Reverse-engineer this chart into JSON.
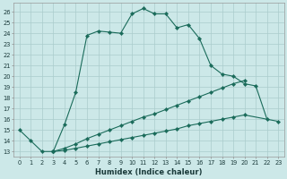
{
  "xlabel": "Humidex (Indice chaleur)",
  "ylabel": "",
  "bg_color": "#cce8e8",
  "grid_color": "#aacccc",
  "line_color": "#1a6b5a",
  "ylim": [
    12.5,
    26.8
  ],
  "xlim": [
    -0.5,
    23.5
  ],
  "line_main": [
    null,
    null,
    null,
    13.0,
    15.5,
    18.5,
    23.8,
    24.2,
    24.1,
    24.0,
    25.8,
    26.3,
    25.8,
    25.8,
    24.5,
    24.8,
    23.5,
    21.0,
    20.2,
    20.0,
    19.3,
    19.1,
    16.0,
    null
  ],
  "line_short": [
    15.0,
    14.0,
    13.0,
    13.0,
    null,
    null,
    null,
    null,
    null,
    null,
    null,
    null,
    null,
    null,
    null,
    null,
    null,
    null,
    null,
    null,
    null,
    null,
    null,
    null
  ],
  "line_upper": [
    null,
    null,
    null,
    13.0,
    13.3,
    13.7,
    14.2,
    14.6,
    15.0,
    15.4,
    15.8,
    16.2,
    16.5,
    16.9,
    17.3,
    17.7,
    18.1,
    18.5,
    18.9,
    19.3,
    19.6,
    null,
    null,
    null
  ],
  "line_lower": [
    null,
    null,
    null,
    13.0,
    13.1,
    13.3,
    13.5,
    13.7,
    13.9,
    14.1,
    14.3,
    14.5,
    14.7,
    14.9,
    15.1,
    15.4,
    15.6,
    15.8,
    16.0,
    16.2,
    16.4,
    null,
    null,
    15.8
  ],
  "yticks": [
    13,
    14,
    15,
    16,
    17,
    18,
    19,
    20,
    21,
    22,
    23,
    24,
    25,
    26
  ],
  "xticks": [
    0,
    1,
    2,
    3,
    4,
    5,
    6,
    7,
    8,
    9,
    10,
    11,
    12,
    13,
    14,
    15,
    16,
    17,
    18,
    19,
    20,
    21,
    22,
    23
  ]
}
